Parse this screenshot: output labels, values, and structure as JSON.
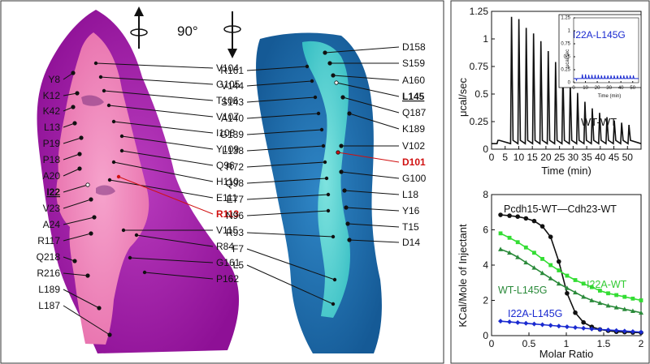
{
  "rotation": {
    "angle": "90°"
  },
  "left_labels": {
    "left_side": [
      "Y8",
      "K12",
      "K42",
      "L13",
      "P19",
      "P18",
      "A20",
      "I22",
      "V23",
      "A24",
      "R117",
      "Q218",
      "R216",
      "L189",
      "L187"
    ],
    "right_side": [
      "V104",
      "G105",
      "T106",
      "V107",
      "I108",
      "Y109",
      "Q96",
      "H110",
      "E111",
      "R113",
      "V115",
      "R84",
      "G161",
      "P162"
    ]
  },
  "right_labels": {
    "left_side": [
      "R161",
      "V144",
      "S143",
      "A140",
      "G139",
      "L138",
      "R72",
      "Q98",
      "E77",
      "N96",
      "R93",
      "F7",
      "L5"
    ],
    "right_side": [
      "D158",
      "S159",
      "A160",
      "L145",
      "Q187",
      "K189",
      "V102",
      "D101",
      "G100",
      "L18",
      "Y16",
      "T15",
      "D14"
    ]
  },
  "colors": {
    "magenta_dark": "#a21aa8",
    "magenta_light": "#f07ab4",
    "blue_dark": "#1f6fb0",
    "cyan_light": "#47cfd0",
    "highlight_red": "#d01010",
    "series_black": "#111111",
    "series_green": "#33dd33",
    "series_darkgreen": "#2a8a3a",
    "series_blue": "#1a2ad0"
  },
  "top_plot": {
    "ylabel": "μcal/sec",
    "xlabel": "Time (min)",
    "curve_label": "WT-WT",
    "inset": {
      "label": "I22A-L145G",
      "ylabel": "μcal/sec",
      "xlabel": "Time (min)"
    }
  },
  "bottom_plot": {
    "ylabel": "KCal/Mole of Injectant",
    "xlabel": "Molar Ratio",
    "series_labels": [
      "Pcdh15-WT—Cdh23-WT",
      "I22A-WT",
      "WT-L145G",
      "I22A-L145G"
    ]
  },
  "chart_data": [
    {
      "type": "line",
      "xlabel": "Time (min)",
      "ylabel": "μcal/sec",
      "xlim": [
        0,
        55
      ],
      "ylim": [
        0,
        1.25
      ],
      "x_ticks": [
        0,
        5,
        10,
        15,
        20,
        25,
        30,
        35,
        40,
        45,
        50
      ],
      "y_ticks": [
        0,
        0.25,
        0.5,
        0.75,
        1,
        1.25
      ],
      "series": [
        {
          "name": "WT-WT",
          "injection_times": [
            2,
            7,
            9.7,
            12.4,
            15.1,
            17.8,
            20.5,
            23.2,
            25.9,
            28.6,
            31.3,
            34,
            36.7,
            39.4,
            42.1,
            44.8,
            47.5,
            50.2
          ],
          "peak_heights": [
            0.08,
            1.2,
            1.18,
            1.1,
            1.05,
            0.98,
            0.89,
            0.79,
            0.7,
            0.6,
            0.51,
            0.43,
            0.37,
            0.33,
            0.29,
            0.26,
            0.24,
            0.22
          ],
          "baseline": 0.05
        }
      ]
    },
    {
      "type": "line",
      "title": "I22A-L145G",
      "xlabel": "Time (min)",
      "ylabel": "μcal/sec",
      "xlim": [
        0,
        55
      ],
      "ylim": [
        0,
        1.25
      ],
      "x_ticks": [
        0,
        10,
        20,
        30,
        40,
        50
      ],
      "y_ticks": [
        0,
        0.25,
        0.5,
        0.75,
        1,
        1.25
      ],
      "series": [
        {
          "name": "I22A-L145G",
          "injection_times": [
            2,
            7,
            9.7,
            12.4,
            15.1,
            17.8,
            20.5,
            23.2,
            25.9,
            28.6,
            31.3,
            34,
            36.7,
            39.4,
            42.1,
            44.8,
            47.5,
            50.2
          ],
          "peak_heights": [
            0.05,
            0.16,
            0.16,
            0.15,
            0.15,
            0.15,
            0.15,
            0.14,
            0.14,
            0.14,
            0.14,
            0.14,
            0.14,
            0.14,
            0.14,
            0.14,
            0.14,
            0.14
          ],
          "baseline": 0.08
        }
      ]
    },
    {
      "type": "scatter",
      "xlabel": "Molar Ratio",
      "ylabel": "KCal/Mole of Injectant",
      "xlim": [
        0,
        2
      ],
      "ylim": [
        0,
        8
      ],
      "x_ticks": [
        0,
        0.5,
        1,
        1.5,
        2
      ],
      "y_ticks": [
        0,
        2,
        4,
        6,
        8
      ],
      "series": [
        {
          "name": "Pcdh15-WT—Cdh23-WT",
          "marker": "circle",
          "x": [
            0.12,
            0.24,
            0.35,
            0.46,
            0.57,
            0.68,
            0.79,
            0.9,
            1.01,
            1.12,
            1.23,
            1.34,
            1.45,
            1.56,
            1.67,
            1.78,
            1.89,
            2.0
          ],
          "y": [
            6.85,
            6.8,
            6.75,
            6.65,
            6.5,
            6.2,
            5.6,
            4.2,
            2.4,
            1.3,
            0.75,
            0.5,
            0.35,
            0.28,
            0.22,
            0.2,
            0.18,
            0.17
          ]
        },
        {
          "name": "I22A-WT",
          "marker": "square",
          "x": [
            0.12,
            0.24,
            0.35,
            0.46,
            0.57,
            0.68,
            0.79,
            0.9,
            1.01,
            1.12,
            1.23,
            1.34,
            1.45,
            1.56,
            1.67,
            1.78,
            1.89,
            2.0
          ],
          "y": [
            5.8,
            5.55,
            5.3,
            5.0,
            4.7,
            4.35,
            4.0,
            3.7,
            3.4,
            3.15,
            2.95,
            2.75,
            2.55,
            2.4,
            2.3,
            2.2,
            2.1,
            2.0
          ]
        },
        {
          "name": "WT-L145G",
          "marker": "triangle",
          "x": [
            0.12,
            0.24,
            0.35,
            0.46,
            0.57,
            0.68,
            0.79,
            0.9,
            1.01,
            1.12,
            1.23,
            1.34,
            1.45,
            1.56,
            1.67,
            1.78,
            1.89,
            2.0
          ],
          "y": [
            4.9,
            4.7,
            4.45,
            4.15,
            3.85,
            3.55,
            3.25,
            2.95,
            2.7,
            2.45,
            2.2,
            2.0,
            1.85,
            1.7,
            1.6,
            1.5,
            1.4,
            1.3
          ]
        },
        {
          "name": "I22A-L145G",
          "marker": "diamond",
          "x": [
            0.12,
            0.24,
            0.35,
            0.46,
            0.57,
            0.68,
            0.79,
            0.9,
            1.01,
            1.12,
            1.23,
            1.34,
            1.45,
            1.56,
            1.67,
            1.78,
            1.89,
            2.0
          ],
          "y": [
            0.82,
            0.78,
            0.74,
            0.7,
            0.66,
            0.62,
            0.58,
            0.54,
            0.5,
            0.46,
            0.42,
            0.38,
            0.35,
            0.32,
            0.29,
            0.26,
            0.23,
            0.2
          ]
        }
      ]
    }
  ]
}
